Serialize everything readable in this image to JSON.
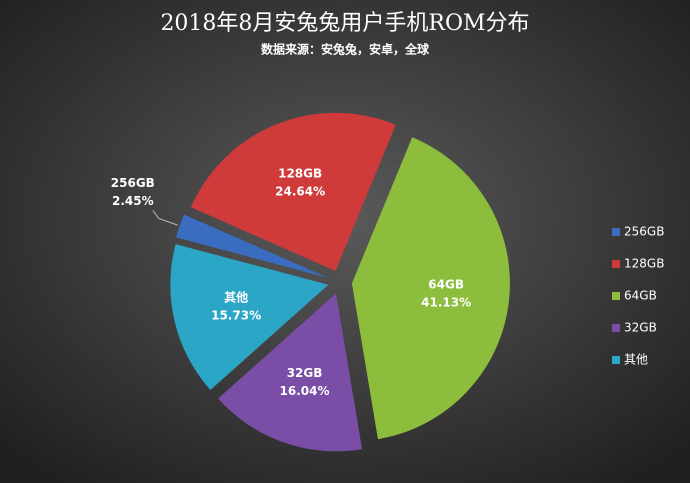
{
  "chart_data": {
    "type": "pie",
    "title": "2018年8月安兔兔用户手机ROM分布",
    "subtitle": "数据来源：安兔兔，安卓，全球",
    "categories": [
      "256GB",
      "128GB",
      "64GB",
      "32GB",
      "其他"
    ],
    "values": [
      2.45,
      24.64,
      41.13,
      16.04,
      15.73
    ],
    "value_labels": [
      "2.45%",
      "24.64%",
      "41.13%",
      "16.04%",
      "15.73%"
    ],
    "colors": [
      "#3a6cc0",
      "#cf3b3b",
      "#8dbd3c",
      "#7a4ea6",
      "#2ba6c7"
    ],
    "legend": "right"
  }
}
